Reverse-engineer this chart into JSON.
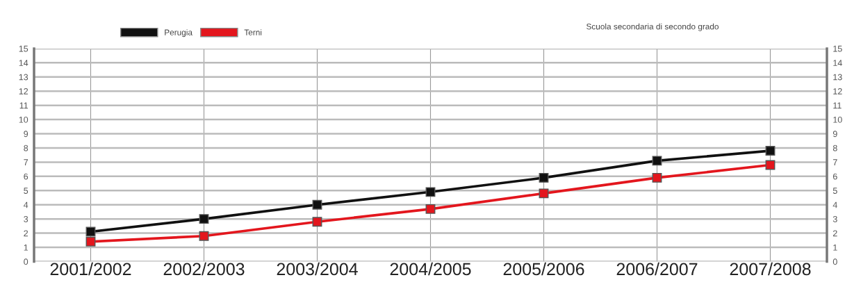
{
  "chart_data": {
    "type": "line",
    "title": "Scuola secondaria di secondo grado",
    "categories": [
      "2001/2002",
      "2002/2003",
      "2003/2004",
      "2004/2005",
      "2005/2006",
      "2006/2007",
      "2007/2008"
    ],
    "series": [
      {
        "name": "Perugia",
        "color": "#111111",
        "values": [
          2.1,
          3.0,
          4.0,
          4.9,
          5.9,
          7.1,
          7.8
        ]
      },
      {
        "name": "Terni",
        "color": "#e3161d",
        "values": [
          1.4,
          1.8,
          2.8,
          3.7,
          4.8,
          5.9,
          6.8
        ]
      }
    ],
    "ylim": [
      0,
      15
    ],
    "yticks": [
      0,
      1,
      2,
      3,
      4,
      5,
      6,
      7,
      8,
      9,
      10,
      11,
      12,
      13,
      14,
      15
    ],
    "y2lim": [
      0,
      15
    ],
    "y2ticks": [
      0,
      1,
      2,
      3,
      4,
      5,
      6,
      7,
      8,
      9,
      10,
      11,
      12,
      13,
      14,
      15
    ],
    "grid": true,
    "legend": "top left",
    "marker": "square",
    "line_style": "solid"
  }
}
